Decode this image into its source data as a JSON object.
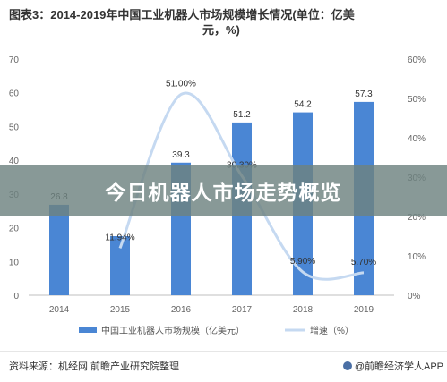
{
  "title_line1": "图表3：2014-2019年中国工业机器人市场规模增长情况(单位：亿美",
  "title_line2": "元，%)",
  "overlay_text": "今日机器人市场走势概览",
  "footer": {
    "source": "资料来源：机经网 前瞻产业研究院整理",
    "brand": "@前瞻经济学人APP"
  },
  "colors": {
    "bar": "#4a86d4",
    "line": "#c5d9f1",
    "overlay": "#6e8280"
  },
  "chart_data": {
    "type": "bar",
    "categories": [
      "2014",
      "2015",
      "2016",
      "2017",
      "2018",
      "2019"
    ],
    "series": [
      {
        "name": "中国工业机器人市场规模（亿美元）",
        "type": "bar",
        "axis": "left",
        "values": [
          26.8,
          17.5,
          39.3,
          51.2,
          54.2,
          57.3
        ],
        "labels": [
          "26.8",
          "",
          "39.3",
          "51.2",
          "54.2",
          "57.3"
        ]
      },
      {
        "name": "增速（%）",
        "type": "line",
        "axis": "right",
        "values": [
          null,
          11.94,
          51.0,
          30.3,
          5.9,
          5.7
        ],
        "labels": [
          "",
          "11.94%",
          "51.00%",
          "30.30%",
          "5.90%",
          "5.70%"
        ]
      }
    ],
    "y_left": {
      "min": 0,
      "max": 70,
      "ticks": [
        0,
        10,
        20,
        30,
        40,
        50,
        60,
        70
      ]
    },
    "y_right": {
      "min": 0,
      "max": 60,
      "ticks": [
        "0%",
        "10%",
        "20%",
        "30%",
        "40%",
        "50%",
        "60%"
      ]
    },
    "legend_position": "bottom",
    "grid": false
  }
}
